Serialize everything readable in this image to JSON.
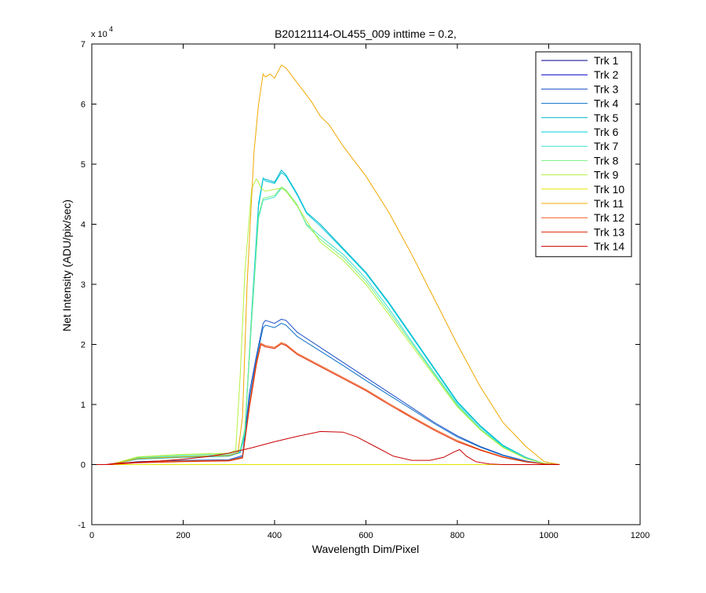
{
  "chart_data": {
    "type": "line",
    "title": "B20121114-OL455_009 inttime = 0.2,",
    "xlabel": "Wavelength Dim/Pixel",
    "ylabel": "Net Intensity (ADU/pix/sec)",
    "y_exponent_label": "x 10",
    "y_exponent": "4",
    "xlim": [
      0,
      1200
    ],
    "ylim": [
      -10000,
      70000
    ],
    "xticks": [
      0,
      200,
      400,
      600,
      800,
      1000,
      1200
    ],
    "yticks": [
      -10000,
      0,
      10000,
      20000,
      30000,
      40000,
      50000,
      60000,
      70000
    ],
    "xtick_labels": [
      "0",
      "200",
      "400",
      "600",
      "800",
      "1000",
      "1200"
    ],
    "ytick_labels": [
      "-1",
      "0",
      "1",
      "2",
      "3",
      "4",
      "5",
      "6",
      "7"
    ],
    "grid": false,
    "legend_position": "top-right",
    "series": [
      {
        "name": "Trk 1",
        "color": "#00008F",
        "x": [
          0,
          1024
        ],
        "y": [
          0,
          0
        ]
      },
      {
        "name": "Trk 2",
        "color": "#0000C8",
        "x": [
          0,
          1024
        ],
        "y": [
          0,
          0
        ]
      },
      {
        "name": "Trk 3",
        "color": "#1C4FC8",
        "x": [
          0,
          40,
          100,
          200,
          300,
          330,
          345,
          360,
          375,
          380,
          400,
          415,
          425,
          450,
          500,
          550,
          600,
          650,
          700,
          750,
          800,
          850,
          900,
          950,
          990,
          1024
        ],
        "y": [
          0,
          0,
          500,
          700,
          800,
          1500,
          12000,
          18000,
          23500,
          24000,
          23500,
          24200,
          24000,
          22000,
          19500,
          17000,
          14500,
          12000,
          9500,
          7000,
          4800,
          3000,
          1600,
          600,
          100,
          0
        ]
      },
      {
        "name": "Trk 4",
        "color": "#0A6FC8",
        "x": [
          0,
          40,
          100,
          200,
          300,
          330,
          345,
          360,
          375,
          380,
          400,
          415,
          425,
          450,
          500,
          550,
          600,
          650,
          700,
          750,
          800,
          850,
          900,
          950,
          990,
          1024
        ],
        "y": [
          0,
          0,
          400,
          600,
          700,
          1300,
          11000,
          17500,
          22800,
          23200,
          22800,
          23500,
          23200,
          21300,
          18900,
          16500,
          14000,
          11600,
          9200,
          6800,
          4600,
          2900,
          1500,
          550,
          100,
          0
        ]
      },
      {
        "name": "Trk 5",
        "color": "#00B4C8",
        "x": [
          0,
          40,
          100,
          200,
          300,
          325,
          335,
          350,
          365,
          375,
          380,
          400,
          415,
          425,
          450,
          470,
          500,
          550,
          600,
          650,
          700,
          750,
          800,
          850,
          900,
          950,
          990,
          1024
        ],
        "y": [
          0,
          0,
          900,
          1200,
          1400,
          2000,
          5000,
          25000,
          43000,
          47500,
          47500,
          47000,
          49000,
          48200,
          45000,
          42000,
          40000,
          36000,
          32000,
          27000,
          21500,
          16000,
          10500,
          6500,
          3200,
          1200,
          200,
          0
        ]
      },
      {
        "name": "Trk 6",
        "color": "#00CCE0",
        "x": [
          0,
          40,
          100,
          200,
          300,
          325,
          335,
          350,
          365,
          375,
          380,
          400,
          415,
          425,
          450,
          470,
          500,
          550,
          600,
          650,
          700,
          750,
          800,
          850,
          900,
          950,
          990,
          1024
        ],
        "y": [
          0,
          0,
          1000,
          1300,
          1500,
          2100,
          5200,
          25500,
          43500,
          47700,
          47200,
          46800,
          48600,
          48000,
          44800,
          41800,
          39700,
          35800,
          31800,
          26800,
          21300,
          15800,
          10300,
          6300,
          3100,
          1100,
          200,
          0
        ]
      },
      {
        "name": "Trk 7",
        "color": "#3CE0D0",
        "x": [
          0,
          40,
          100,
          200,
          300,
          325,
          335,
          350,
          365,
          375,
          385,
          400,
          415,
          425,
          450,
          470,
          500,
          550,
          600,
          650,
          700,
          750,
          800,
          850,
          900,
          950,
          990,
          1024
        ],
        "y": [
          0,
          0,
          1100,
          1400,
          1600,
          2200,
          5500,
          24000,
          41000,
          44000,
          44200,
          44500,
          46000,
          45500,
          43000,
          40000,
          38000,
          35000,
          31000,
          26000,
          20500,
          15200,
          10000,
          6000,
          3000,
          1100,
          200,
          0
        ]
      },
      {
        "name": "Trk 8",
        "color": "#78F080",
        "x": [
          0,
          40,
          100,
          200,
          300,
          325,
          335,
          350,
          365,
          375,
          385,
          400,
          415,
          425,
          450,
          470,
          500,
          550,
          600,
          650,
          700,
          750,
          800,
          850,
          900,
          950,
          990,
          1024
        ],
        "y": [
          0,
          0,
          1200,
          1600,
          1800,
          2500,
          6000,
          24500,
          41500,
          44300,
          44500,
          44800,
          46200,
          45700,
          43200,
          39800,
          37500,
          34500,
          30500,
          25500,
          20200,
          15000,
          9800,
          5900,
          2900,
          1000,
          200,
          0
        ]
      },
      {
        "name": "Trk 9",
        "color": "#B4F040",
        "x": [
          0,
          40,
          100,
          200,
          300,
          315,
          325,
          335,
          350,
          360,
          365,
          370,
          380,
          400,
          415,
          425,
          450,
          500,
          550,
          600,
          650,
          700,
          750,
          800,
          850,
          900,
          950,
          990,
          1024
        ],
        "y": [
          0,
          0,
          1300,
          1700,
          1900,
          2400,
          15000,
          32000,
          46000,
          47500,
          47000,
          46000,
          45500,
          45800,
          46000,
          45500,
          43000,
          37000,
          34000,
          30000,
          25000,
          19800,
          14700,
          9600,
          5800,
          2800,
          1000,
          200,
          0
        ]
      },
      {
        "name": "Trk 10",
        "color": "#E6E600",
        "x": [
          0,
          1024
        ],
        "y": [
          0,
          0
        ]
      },
      {
        "name": "Trk 11",
        "color": "#F0A800",
        "x": [
          0,
          40,
          100,
          200,
          300,
          320,
          330,
          340,
          355,
          365,
          375,
          380,
          390,
          400,
          415,
          425,
          450,
          480,
          500,
          520,
          550,
          600,
          650,
          700,
          750,
          800,
          850,
          900,
          950,
          990,
          1024
        ],
        "y": [
          0,
          0,
          1000,
          1300,
          1500,
          2000,
          8000,
          30000,
          52000,
          60000,
          65000,
          64500,
          65000,
          64300,
          66500,
          66000,
          63500,
          60500,
          58000,
          56500,
          53000,
          48000,
          42000,
          35000,
          27500,
          20000,
          13000,
          7000,
          3000,
          500,
          0
        ]
      },
      {
        "name": "Trk 12",
        "color": "#F06020",
        "x": [
          0,
          40,
          100,
          200,
          300,
          330,
          345,
          360,
          370,
          380,
          400,
          415,
          425,
          450,
          500,
          550,
          600,
          650,
          700,
          750,
          800,
          850,
          900,
          950,
          990,
          1024
        ],
        "y": [
          0,
          0,
          400,
          600,
          700,
          1200,
          10000,
          17000,
          20200,
          19800,
          19500,
          20300,
          20000,
          18500,
          16500,
          14500,
          12500,
          10200,
          8000,
          5900,
          4000,
          2500,
          1300,
          500,
          100,
          0
        ]
      },
      {
        "name": "Trk 13",
        "color": "#E02800",
        "x": [
          0,
          40,
          100,
          200,
          300,
          330,
          345,
          360,
          370,
          380,
          400,
          415,
          425,
          450,
          500,
          550,
          600,
          650,
          700,
          750,
          800,
          850,
          900,
          950,
          990,
          1024
        ],
        "y": [
          0,
          0,
          300,
          500,
          600,
          1100,
          9500,
          16500,
          20000,
          19600,
          19300,
          20100,
          19800,
          18300,
          16300,
          14300,
          12300,
          10000,
          7800,
          5700,
          3800,
          2400,
          1200,
          450,
          100,
          0
        ]
      },
      {
        "name": "Trk 14",
        "color": "#C80000",
        "x": [
          0,
          30,
          50,
          100,
          150,
          200,
          250,
          300,
          350,
          400,
          450,
          500,
          550,
          580,
          620,
          660,
          700,
          740,
          770,
          790,
          805,
          820,
          840,
          870,
          900,
          1000,
          1024
        ],
        "y": [
          0,
          0,
          200,
          400,
          600,
          900,
          1300,
          1900,
          2800,
          3800,
          4700,
          5500,
          5400,
          4600,
          3000,
          1400,
          700,
          700,
          1200,
          2000,
          2500,
          1400,
          500,
          100,
          0,
          0,
          0
        ]
      }
    ]
  }
}
